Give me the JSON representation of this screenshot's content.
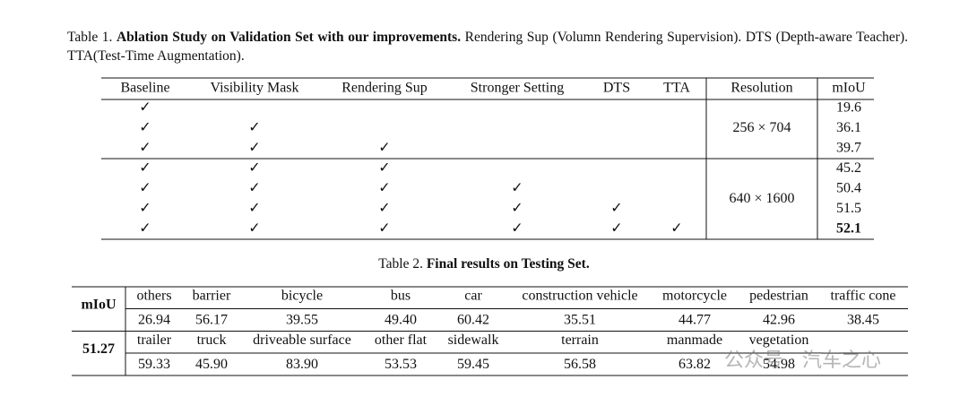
{
  "table1": {
    "caption": {
      "label": "Table 1.",
      "bold": "Ablation Study on Validation Set with our improvements.",
      "text": "Rendering Sup (Volumn Rendering Supervision). DTS (Depth-aware Teacher). TTA(Test-Time Augmentation)."
    },
    "header": [
      "Baseline",
      "Visibility Mask",
      "Rendering Sup",
      "Stronger Setting",
      "DTS",
      "TTA",
      "Resolution",
      "mIoU"
    ],
    "groups": [
      {
        "resolution": "256 × 704",
        "rows": [
          {
            "checks": [
              "✓"
            ],
            "miou": "19.6"
          },
          {
            "checks": [
              "✓",
              "✓"
            ],
            "miou": "36.1"
          },
          {
            "checks": [
              "✓",
              "✓",
              "✓"
            ],
            "miou": "39.7"
          }
        ]
      },
      {
        "resolution": "640 × 1600",
        "rows": [
          {
            "checks": [
              "✓",
              "✓",
              "✓"
            ],
            "miou": "45.2"
          },
          {
            "checks": [
              "✓",
              "✓",
              "✓",
              "✓"
            ],
            "miou": "50.4"
          },
          {
            "checks": [
              "✓",
              "✓",
              "✓",
              "✓",
              "✓"
            ],
            "miou": "51.5"
          },
          {
            "checks": [
              "✓",
              "✓",
              "✓",
              "✓",
              "✓",
              "✓"
            ],
            "miou": "52.1",
            "bold": true
          }
        ]
      }
    ]
  },
  "table2": {
    "caption": {
      "label": "Table 2.",
      "bold": "Final results on Testing Set."
    },
    "blocks": [
      {
        "label": "mIoU",
        "classes": [
          "others",
          "barrier",
          "bicycle",
          "bus",
          "car",
          "construction vehicle",
          "motorcycle",
          "pedestrian",
          "traffic cone"
        ],
        "values": [
          "26.94",
          "56.17",
          "39.55",
          "49.40",
          "60.42",
          "35.51",
          "44.77",
          "42.96",
          "38.45"
        ]
      },
      {
        "label": "51.27",
        "classes": [
          "trailer",
          "truck",
          "driveable surface",
          "other flat",
          "sidewalk",
          "terrain",
          "manmade",
          "vegetation"
        ],
        "values": [
          "59.33",
          "45.90",
          "83.90",
          "53.53",
          "59.45",
          "56.58",
          "63.82",
          "54.98"
        ]
      }
    ]
  },
  "watermark": "公众号 · 汽车之心"
}
